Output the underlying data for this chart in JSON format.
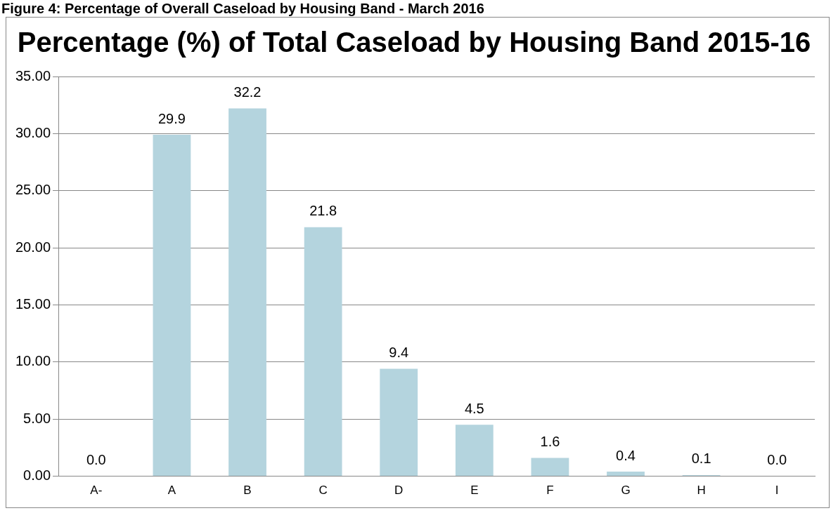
{
  "chart_data": {
    "type": "bar",
    "title": "Percentage (%) of Total Caseload by Housing Band 2015-16",
    "annotations": [
      "Figure 4: Percentage of Overall Caseload by Housing Band - March 2016"
    ],
    "categories": [
      "A-",
      "A",
      "B",
      "C",
      "D",
      "E",
      "F",
      "G",
      "H",
      "I"
    ],
    "values": [
      0.0,
      29.9,
      32.2,
      21.8,
      9.4,
      4.5,
      1.6,
      0.4,
      0.1,
      0.0
    ],
    "value_labels": [
      "0.0",
      "29.9",
      "32.2",
      "21.8",
      "9.4",
      "4.5",
      "1.6",
      "0.4",
      "0.1",
      "0.0"
    ],
    "color": "#b4d4de",
    "ylim": [
      0,
      35
    ],
    "yticks": [
      {
        "value": 0,
        "label": "0.00"
      },
      {
        "value": 5,
        "label": "5.00"
      },
      {
        "value": 10,
        "label": "10.00"
      },
      {
        "value": 15,
        "label": "15.00"
      },
      {
        "value": 20,
        "label": "20.00"
      },
      {
        "value": 25,
        "label": "25.00"
      },
      {
        "value": 30,
        "label": "30.00"
      },
      {
        "value": 35,
        "label": "35.00"
      }
    ],
    "grid": "y",
    "legend": false
  }
}
